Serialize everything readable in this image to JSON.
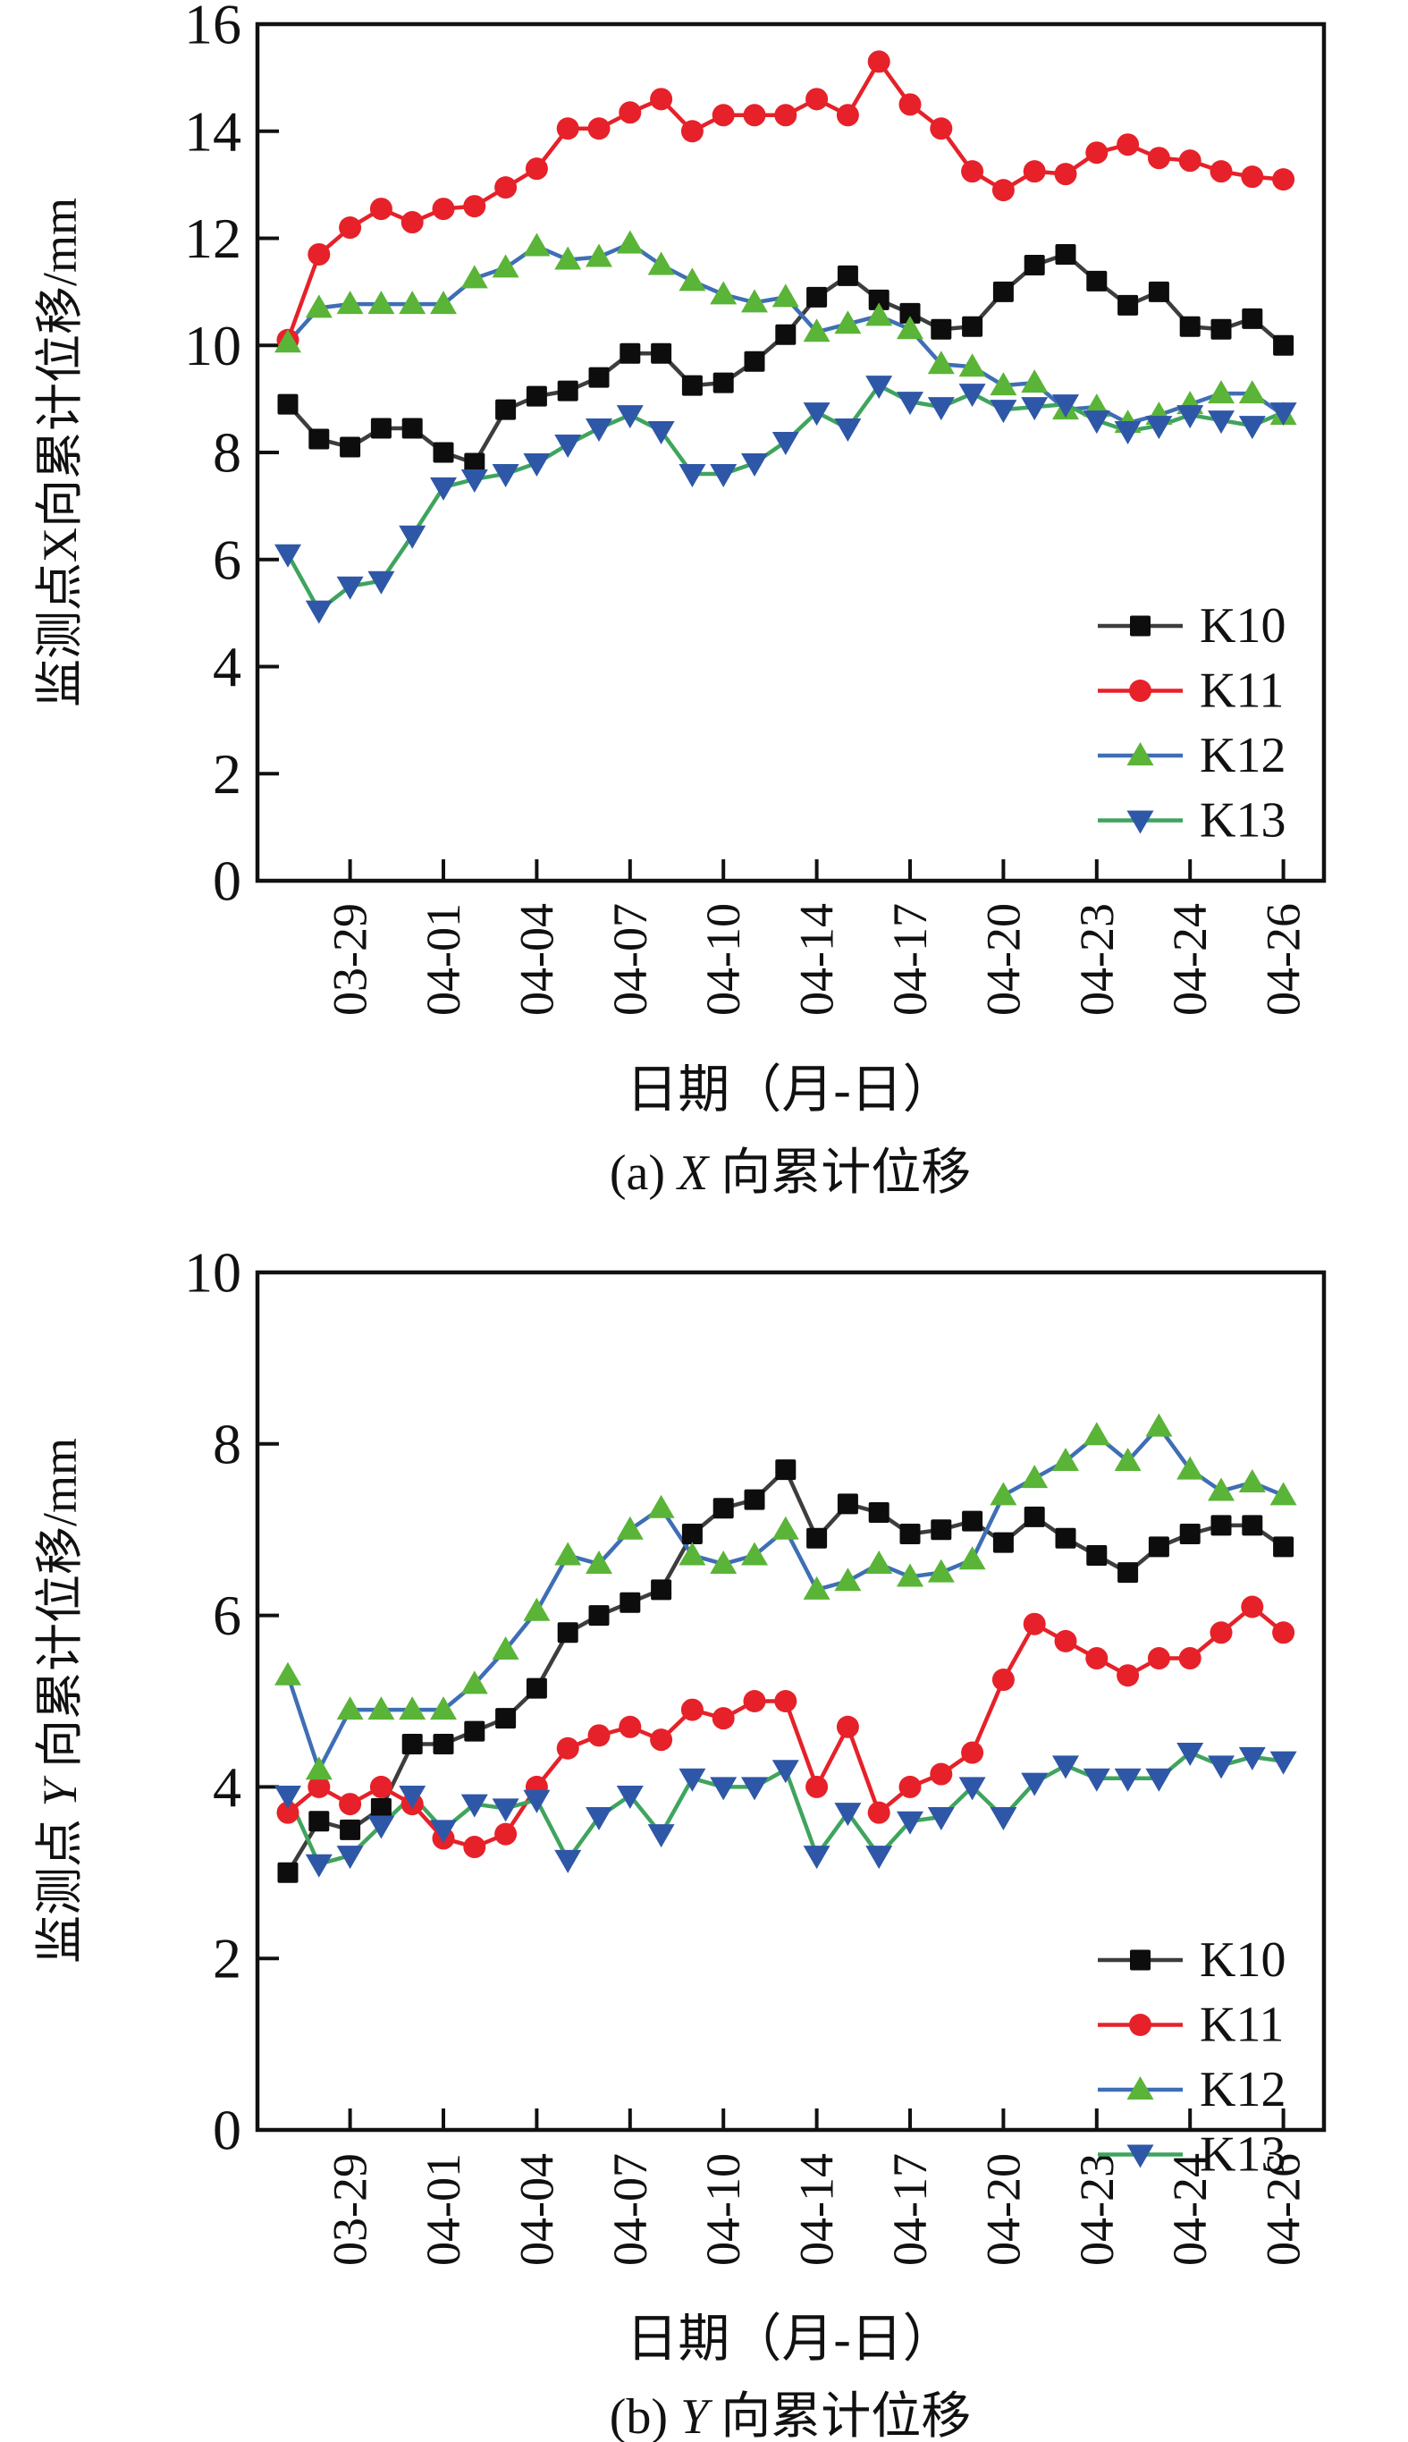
{
  "page": {
    "background": "#ffffff"
  },
  "legend": {
    "items": [
      {
        "label": "K10",
        "marker": "square",
        "marker_color": "#0d0d0d",
        "line_color": "#3d3d3d"
      },
      {
        "label": "K11",
        "marker": "circle",
        "marker_color": "#e62129",
        "line_color": "#e62129"
      },
      {
        "label": "K12",
        "marker": "triangle-up",
        "marker_color": "#5ab437",
        "line_color": "#3f6eb5"
      },
      {
        "label": "K13",
        "marker": "triangle-down",
        "marker_color": "#2f57a7",
        "line_color": "#3fa45d"
      }
    ]
  },
  "chart_data": [
    {
      "id": "a",
      "type": "line",
      "caption": {
        "prefix": "(a) ",
        "letter": "X",
        "letter_italic": true,
        "suffix": " 向累计位移"
      },
      "xlabel": "日期（月-日）",
      "ylabel": {
        "prefix": "监测点",
        "letter": "X",
        "letter_italic": false,
        "suffix": "向累计位移/mm"
      },
      "ylim": [
        0,
        16
      ],
      "ytick_step": 2,
      "grid": false,
      "legend_position": "right-inside",
      "x_categories": [
        "",
        "",
        "03-29",
        "",
        "",
        "04-01",
        "",
        "",
        "04-04",
        "",
        "",
        "04-07",
        "",
        "",
        "04-10",
        "",
        "",
        "04-14",
        "",
        "",
        "04-17",
        "",
        "",
        "04-20",
        "",
        "",
        "04-23",
        "",
        "",
        "04-24",
        "",
        "",
        "04-26"
      ],
      "series": [
        {
          "name": "K10",
          "marker": "square",
          "marker_color": "#0d0d0d",
          "line_color": "#3d3d3d",
          "values": [
            8.9,
            8.25,
            8.1,
            8.45,
            8.45,
            8.0,
            7.8,
            8.8,
            9.05,
            9.15,
            9.4,
            9.85,
            9.85,
            9.25,
            9.3,
            9.7,
            10.2,
            10.9,
            11.3,
            10.85,
            10.6,
            10.3,
            10.35,
            11.0,
            11.5,
            11.7,
            11.2,
            10.75,
            11.0,
            10.35,
            10.3,
            10.5,
            10.0
          ]
        },
        {
          "name": "K11",
          "marker": "circle",
          "marker_color": "#e62129",
          "line_color": "#e62129",
          "values": [
            10.1,
            11.7,
            12.2,
            12.55,
            12.3,
            12.55,
            12.6,
            12.95,
            13.3,
            14.05,
            14.05,
            14.35,
            14.6,
            14.0,
            14.3,
            14.3,
            14.3,
            14.6,
            14.3,
            15.3,
            14.5,
            14.05,
            13.25,
            12.9,
            13.25,
            13.2,
            13.6,
            13.75,
            13.5,
            13.45,
            13.25,
            13.15,
            13.1
          ]
        },
        {
          "name": "K12",
          "marker": "triangle-up",
          "marker_color": "#5ab437",
          "line_color": "#3f6eb5",
          "values": [
            10.05,
            10.7,
            10.77,
            10.77,
            10.77,
            10.77,
            11.25,
            11.45,
            11.85,
            11.6,
            11.65,
            11.9,
            11.5,
            11.2,
            10.95,
            10.8,
            10.9,
            10.25,
            10.4,
            10.55,
            10.3,
            9.65,
            9.6,
            9.25,
            9.3,
            8.8,
            8.85,
            8.55,
            8.7,
            8.9,
            9.1,
            9.1,
            8.7
          ]
        },
        {
          "name": "K13",
          "marker": "triangle-down",
          "marker_color": "#2f57a7",
          "line_color": "#3fa45d",
          "values": [
            6.1,
            5.05,
            5.5,
            5.6,
            6.45,
            7.35,
            7.5,
            7.6,
            7.8,
            8.15,
            8.45,
            8.7,
            8.4,
            7.6,
            7.6,
            7.8,
            8.2,
            8.75,
            8.45,
            9.25,
            8.95,
            8.85,
            9.1,
            8.8,
            8.85,
            8.9,
            8.6,
            8.4,
            8.5,
            8.7,
            8.6,
            8.5,
            8.75
          ]
        }
      ]
    },
    {
      "id": "b",
      "type": "line",
      "caption": {
        "prefix": "(b) ",
        "letter": "Y",
        "letter_italic": true,
        "suffix": " 向累计位移"
      },
      "xlabel": "日期（月-日）",
      "ylabel": {
        "prefix": "监测点 ",
        "letter": "Y",
        "letter_italic": true,
        "suffix": " 向累计位移/mm"
      },
      "ylim": [
        0,
        10
      ],
      "ytick_step": 2,
      "grid": false,
      "legend_position": "right-inside",
      "x_categories": [
        "",
        "",
        "03-29",
        "",
        "",
        "04-01",
        "",
        "",
        "04-04",
        "",
        "",
        "04-07",
        "",
        "",
        "04-10",
        "",
        "",
        "04-14",
        "",
        "",
        "04-17",
        "",
        "",
        "04-20",
        "",
        "",
        "04-23",
        "",
        "",
        "04-24",
        "",
        "",
        "04-26"
      ],
      "series": [
        {
          "name": "K10",
          "marker": "square",
          "marker_color": "#0d0d0d",
          "line_color": "#3d3d3d",
          "values": [
            3.0,
            3.6,
            3.5,
            3.75,
            4.5,
            4.5,
            4.65,
            4.8,
            5.15,
            5.8,
            6.0,
            6.15,
            6.3,
            6.95,
            7.25,
            7.35,
            7.7,
            6.9,
            7.3,
            7.2,
            6.95,
            7.0,
            7.1,
            6.85,
            7.15,
            6.9,
            6.7,
            6.5,
            6.8,
            6.95,
            7.05,
            7.05,
            6.8
          ]
        },
        {
          "name": "K11",
          "marker": "circle",
          "marker_color": "#e62129",
          "line_color": "#e62129",
          "values": [
            3.7,
            4.0,
            3.8,
            4.0,
            3.8,
            3.4,
            3.3,
            3.45,
            4.0,
            4.45,
            4.6,
            4.7,
            4.55,
            4.9,
            4.8,
            5.0,
            5.0,
            4.0,
            4.7,
            3.7,
            4.0,
            4.15,
            4.4,
            5.25,
            5.9,
            5.7,
            5.5,
            5.3,
            5.5,
            5.5,
            5.8,
            6.1,
            5.8
          ]
        },
        {
          "name": "K12",
          "marker": "triangle-up",
          "marker_color": "#5ab437",
          "line_color": "#3f6eb5",
          "values": [
            5.3,
            4.2,
            4.9,
            4.9,
            4.9,
            4.9,
            5.2,
            5.6,
            6.05,
            6.7,
            6.6,
            7.0,
            7.25,
            6.7,
            6.6,
            6.7,
            7.0,
            6.3,
            6.4,
            6.6,
            6.45,
            6.5,
            6.65,
            7.4,
            7.6,
            7.8,
            8.1,
            7.8,
            8.2,
            7.7,
            7.45,
            7.55,
            7.4
          ]
        },
        {
          "name": "K13",
          "marker": "triangle-down",
          "marker_color": "#2f57a7",
          "line_color": "#3fa45d",
          "values": [
            3.9,
            3.1,
            3.2,
            3.55,
            3.9,
            3.5,
            3.8,
            3.75,
            3.85,
            3.15,
            3.65,
            3.9,
            3.45,
            4.1,
            4.0,
            4.0,
            4.2,
            3.2,
            3.7,
            3.2,
            3.6,
            3.65,
            4.0,
            3.65,
            4.05,
            4.25,
            4.1,
            4.1,
            4.1,
            4.4,
            4.25,
            4.35,
            4.3
          ]
        }
      ]
    }
  ]
}
